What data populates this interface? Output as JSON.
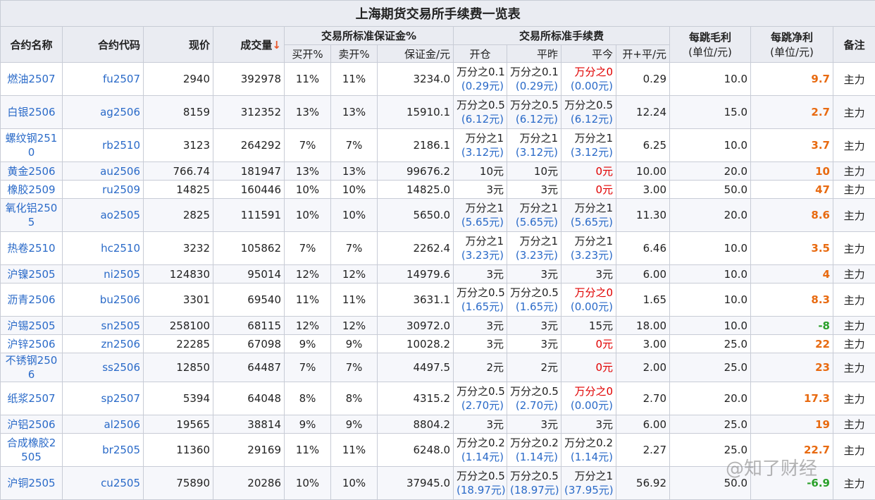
{
  "title": "上海期货交易所手续费一览表",
  "headers": {
    "name": "合约名称",
    "code": "合约代码",
    "price": "现价",
    "volume": "成交量",
    "sort_arrow": "↓",
    "margin_group": "交易所标准保证金%",
    "buy_open": "买开%",
    "sell_open": "卖开%",
    "margin_amount": "保证金/元",
    "fee_group": "交易所标准手续费",
    "open": "开仓",
    "close_yesterday": "平昨",
    "close_today": "平今",
    "open_close": "开+平/元",
    "tick_gross": "每跳毛利",
    "tick_gross_unit": "(单位/元)",
    "tick_net": "每跳净利",
    "tick_net_unit": "(单位/元)",
    "remark": "备注"
  },
  "rows": [
    {
      "name": "燃油2507",
      "code": "fu2507",
      "price": "2940",
      "volume": "392978",
      "buy": "11%",
      "sell": "11%",
      "margin": "3234.0",
      "open": {
        "main": "万分之0.1",
        "sub": "(0.29元)"
      },
      "close_yesterday": {
        "main": "万分之0.1",
        "sub": "(0.29元)"
      },
      "close_today": {
        "main": "万分之0",
        "sub": "(0.00元)",
        "red": true
      },
      "oc": "0.29",
      "gross": "10.0",
      "net": "9.7",
      "remark": "主力"
    },
    {
      "name": "白银2506",
      "code": "ag2506",
      "price": "8159",
      "volume": "312352",
      "buy": "13%",
      "sell": "13%",
      "margin": "15910.1",
      "open": {
        "main": "万分之0.5",
        "sub": "(6.12元)"
      },
      "close_yesterday": {
        "main": "万分之0.5",
        "sub": "(6.12元)"
      },
      "close_today": {
        "main": "万分之0.5",
        "sub": "(6.12元)"
      },
      "oc": "12.24",
      "gross": "15.0",
      "net": "2.7",
      "remark": "主力"
    },
    {
      "name": "螺纹钢2510",
      "code": "rb2510",
      "price": "3123",
      "volume": "264292",
      "buy": "7%",
      "sell": "7%",
      "margin": "2186.1",
      "open": {
        "main": "万分之1",
        "sub": "(3.12元)"
      },
      "close_yesterday": {
        "main": "万分之1",
        "sub": "(3.12元)"
      },
      "close_today": {
        "main": "万分之1",
        "sub": "(3.12元)"
      },
      "oc": "6.25",
      "gross": "10.0",
      "net": "3.7",
      "remark": "主力"
    },
    {
      "name": "黄金2506",
      "code": "au2506",
      "price": "766.74",
      "volume": "181947",
      "buy": "13%",
      "sell": "13%",
      "margin": "99676.2",
      "open": {
        "main": "10元"
      },
      "close_yesterday": {
        "main": "10元"
      },
      "close_today": {
        "main": "0元",
        "red": true
      },
      "oc": "10.00",
      "gross": "20.0",
      "net": "10",
      "remark": "主力"
    },
    {
      "name": "橡胶2509",
      "code": "ru2509",
      "price": "14825",
      "volume": "160446",
      "buy": "10%",
      "sell": "10%",
      "margin": "14825.0",
      "open": {
        "main": "3元"
      },
      "close_yesterday": {
        "main": "3元"
      },
      "close_today": {
        "main": "0元",
        "red": true
      },
      "oc": "3.00",
      "gross": "50.0",
      "net": "47",
      "remark": "主力"
    },
    {
      "name": "氧化铝2505",
      "code": "ao2505",
      "price": "2825",
      "volume": "111591",
      "buy": "10%",
      "sell": "10%",
      "margin": "5650.0",
      "open": {
        "main": "万分之1",
        "sub": "(5.65元)"
      },
      "close_yesterday": {
        "main": "万分之1",
        "sub": "(5.65元)"
      },
      "close_today": {
        "main": "万分之1",
        "sub": "(5.65元)"
      },
      "oc": "11.30",
      "gross": "20.0",
      "net": "8.6",
      "remark": "主力"
    },
    {
      "name": "热卷2510",
      "code": "hc2510",
      "price": "3232",
      "volume": "105862",
      "buy": "7%",
      "sell": "7%",
      "margin": "2262.4",
      "open": {
        "main": "万分之1",
        "sub": "(3.23元)"
      },
      "close_yesterday": {
        "main": "万分之1",
        "sub": "(3.23元)"
      },
      "close_today": {
        "main": "万分之1",
        "sub": "(3.23元)"
      },
      "oc": "6.46",
      "gross": "10.0",
      "net": "3.5",
      "remark": "主力"
    },
    {
      "name": "沪镍2505",
      "code": "ni2505",
      "price": "124830",
      "volume": "95014",
      "buy": "12%",
      "sell": "12%",
      "margin": "14979.6",
      "open": {
        "main": "3元"
      },
      "close_yesterday": {
        "main": "3元"
      },
      "close_today": {
        "main": "3元"
      },
      "oc": "6.00",
      "gross": "10.0",
      "net": "4",
      "remark": "主力"
    },
    {
      "name": "沥青2506",
      "code": "bu2506",
      "price": "3301",
      "volume": "69540",
      "buy": "11%",
      "sell": "11%",
      "margin": "3631.1",
      "open": {
        "main": "万分之0.5",
        "sub": "(1.65元)"
      },
      "close_yesterday": {
        "main": "万分之0.5",
        "sub": "(1.65元)"
      },
      "close_today": {
        "main": "万分之0",
        "sub": "(0.00元)",
        "red": true
      },
      "oc": "1.65",
      "gross": "10.0",
      "net": "8.3",
      "remark": "主力"
    },
    {
      "name": "沪锡2505",
      "code": "sn2505",
      "price": "258100",
      "volume": "68115",
      "buy": "12%",
      "sell": "12%",
      "margin": "30972.0",
      "open": {
        "main": "3元"
      },
      "close_yesterday": {
        "main": "3元"
      },
      "close_today": {
        "main": "15元"
      },
      "oc": "18.00",
      "gross": "10.0",
      "net": "-8",
      "net_negative": true,
      "remark": "主力"
    },
    {
      "name": "沪锌2506",
      "code": "zn2506",
      "price": "22285",
      "volume": "67098",
      "buy": "9%",
      "sell": "9%",
      "margin": "10028.2",
      "open": {
        "main": "3元"
      },
      "close_yesterday": {
        "main": "3元"
      },
      "close_today": {
        "main": "0元",
        "red": true
      },
      "oc": "3.00",
      "gross": "25.0",
      "net": "22",
      "remark": "主力"
    },
    {
      "name": "不锈钢2506",
      "code": "ss2506",
      "price": "12850",
      "volume": "64487",
      "buy": "7%",
      "sell": "7%",
      "margin": "4497.5",
      "open": {
        "main": "2元"
      },
      "close_yesterday": {
        "main": "2元"
      },
      "close_today": {
        "main": "0元",
        "red": true
      },
      "oc": "2.00",
      "gross": "25.0",
      "net": "23",
      "remark": "主力"
    },
    {
      "name": "纸浆2507",
      "code": "sp2507",
      "price": "5394",
      "volume": "64048",
      "buy": "8%",
      "sell": "8%",
      "margin": "4315.2",
      "open": {
        "main": "万分之0.5",
        "sub": "(2.70元)"
      },
      "close_yesterday": {
        "main": "万分之0.5",
        "sub": "(2.70元)"
      },
      "close_today": {
        "main": "万分之0",
        "sub": "(0.00元)",
        "red": true
      },
      "oc": "2.70",
      "gross": "20.0",
      "net": "17.3",
      "remark": "主力"
    },
    {
      "name": "沪铝2506",
      "code": "al2506",
      "price": "19565",
      "volume": "38814",
      "buy": "9%",
      "sell": "9%",
      "margin": "8804.2",
      "open": {
        "main": "3元"
      },
      "close_yesterday": {
        "main": "3元"
      },
      "close_today": {
        "main": "3元"
      },
      "oc": "6.00",
      "gross": "25.0",
      "net": "19",
      "remark": "主力"
    },
    {
      "name": "合成橡胶2505",
      "code": "br2505",
      "price": "11360",
      "volume": "29169",
      "buy": "11%",
      "sell": "11%",
      "margin": "6248.0",
      "open": {
        "main": "万分之0.2",
        "sub": "(1.14元)"
      },
      "close_yesterday": {
        "main": "万分之0.2",
        "sub": "(1.14元)"
      },
      "close_today": {
        "main": "万分之0.2",
        "sub": "(1.14元)"
      },
      "oc": "2.27",
      "gross": "25.0",
      "net": "22.7",
      "remark": "主力"
    },
    {
      "name": "沪铜2505",
      "code": "cu2505",
      "price": "75890",
      "volume": "20286",
      "buy": "10%",
      "sell": "10%",
      "margin": "37945.0",
      "open": {
        "main": "万分之0.5",
        "sub": "(18.97元)"
      },
      "close_yesterday": {
        "main": "万分之0.5",
        "sub": "(18.97元)"
      },
      "close_today": {
        "main": "万分之1",
        "sub": "(37.95元)"
      },
      "oc": "56.92",
      "gross": "50.0",
      "net": "-6.9",
      "net_negative": true,
      "remark": "主力"
    }
  ],
  "watermark": "@知了财经",
  "colors": {
    "link": "#2a6ac8",
    "red": "#e00000",
    "net_positive": "#e86a10",
    "net_negative": "#2aa02a",
    "header_bg": "#eaecf2"
  }
}
